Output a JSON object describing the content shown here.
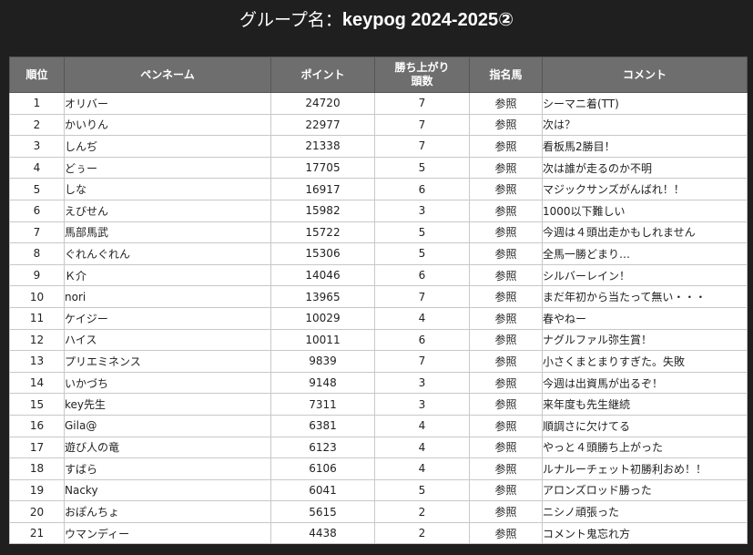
{
  "header": {
    "prefix": "グループ名：",
    "group_name": "keypog 2024-2025②"
  },
  "table": {
    "columns": [
      "順位",
      "ペンネーム",
      "ポイント",
      "勝ち上がり\n頭数",
      "指名馬",
      "コメント"
    ],
    "rows": [
      {
        "rank": "1",
        "name": "オリバー",
        "points": "24720",
        "wins": "7",
        "ref": "参照",
        "comment": "シーマニ着(TT)"
      },
      {
        "rank": "2",
        "name": "かいりん",
        "points": "22977",
        "wins": "7",
        "ref": "参照",
        "comment": "次は？"
      },
      {
        "rank": "3",
        "name": "しんぢ",
        "points": "21338",
        "wins": "7",
        "ref": "参照",
        "comment": "看板馬2勝目！"
      },
      {
        "rank": "4",
        "name": "どぅー",
        "points": "17705",
        "wins": "5",
        "ref": "参照",
        "comment": "次は誰が走るのか不明"
      },
      {
        "rank": "5",
        "name": "しな",
        "points": "16917",
        "wins": "6",
        "ref": "参照",
        "comment": "マジックサンズがんばれ！！"
      },
      {
        "rank": "6",
        "name": "えびせん",
        "points": "15982",
        "wins": "3",
        "ref": "参照",
        "comment": "1000以下難しい"
      },
      {
        "rank": "7",
        "name": "馬部馬武",
        "points": "15722",
        "wins": "5",
        "ref": "参照",
        "comment": "今週は４頭出走かもしれません"
      },
      {
        "rank": "8",
        "name": "ぐれんぐれん",
        "points": "15306",
        "wins": "5",
        "ref": "参照",
        "comment": "全馬一勝どまり…"
      },
      {
        "rank": "9",
        "name": "Ｋ介",
        "points": "14046",
        "wins": "6",
        "ref": "参照",
        "comment": "シルバーレイン！"
      },
      {
        "rank": "10",
        "name": "nori",
        "points": "13965",
        "wins": "7",
        "ref": "参照",
        "comment": "まだ年初から当たって無い・・・"
      },
      {
        "rank": "11",
        "name": "ケイジー",
        "points": "10029",
        "wins": "4",
        "ref": "参照",
        "comment": "春やねー"
      },
      {
        "rank": "12",
        "name": "ハイス",
        "points": "10011",
        "wins": "6",
        "ref": "参照",
        "comment": "ナグルファル弥生賞！"
      },
      {
        "rank": "13",
        "name": "プリエミネンス",
        "points": "9839",
        "wins": "7",
        "ref": "参照",
        "comment": "小さくまとまりすぎた。失敗"
      },
      {
        "rank": "14",
        "name": "いかづち",
        "points": "9148",
        "wins": "3",
        "ref": "参照",
        "comment": "今週は出資馬が出るぞ！"
      },
      {
        "rank": "15",
        "name": "key先生",
        "points": "7311",
        "wins": "3",
        "ref": "参照",
        "comment": "来年度も先生継続"
      },
      {
        "rank": "16",
        "name": "Gila@",
        "points": "6381",
        "wins": "4",
        "ref": "参照",
        "comment": "順調さに欠けてる"
      },
      {
        "rank": "17",
        "name": "遊び人の竜",
        "points": "6123",
        "wins": "4",
        "ref": "参照",
        "comment": "やっと４頭勝ち上がった"
      },
      {
        "rank": "18",
        "name": "すばら",
        "points": "6106",
        "wins": "4",
        "ref": "参照",
        "comment": "ルナルーチェット初勝利おめ！！"
      },
      {
        "rank": "19",
        "name": "Nacky",
        "points": "6041",
        "wins": "5",
        "ref": "参照",
        "comment": "アロンズロッド勝った"
      },
      {
        "rank": "20",
        "name": "おぽんちょ",
        "points": "5615",
        "wins": "2",
        "ref": "参照",
        "comment": "ニシノ頑張った"
      },
      {
        "rank": "21",
        "name": "ウマンディー",
        "points": "4438",
        "wins": "2",
        "ref": "参照",
        "comment": "コメント鬼忘れ方"
      }
    ]
  }
}
